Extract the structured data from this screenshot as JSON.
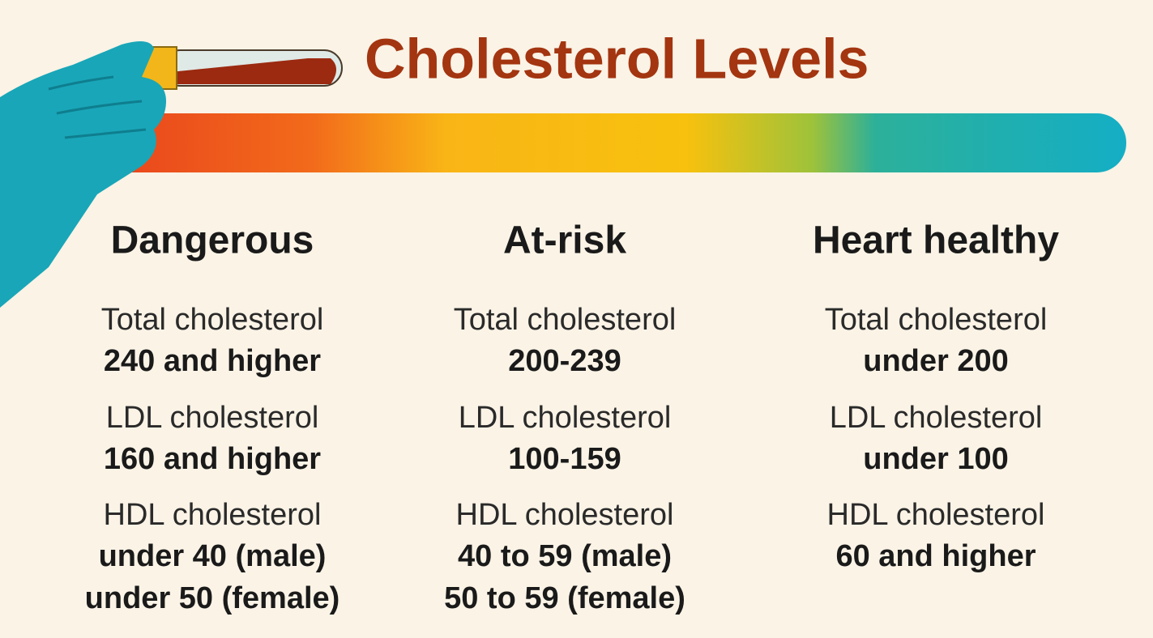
{
  "title": "Cholesterol Levels",
  "columns": [
    {
      "heading": "Dangerous",
      "items": [
        {
          "label": "Total cholesterol",
          "value": [
            "240 and higher"
          ]
        },
        {
          "label": "LDL cholesterol",
          "value": [
            "160 and higher"
          ]
        },
        {
          "label": "HDL cholesterol",
          "value": [
            "under 40 (male)",
            "under 50 (female)"
          ]
        }
      ]
    },
    {
      "heading": "At-risk",
      "items": [
        {
          "label": "Total cholesterol",
          "value": [
            "200-239"
          ]
        },
        {
          "label": "LDL cholesterol",
          "value": [
            "100-159"
          ]
        },
        {
          "label": "HDL cholesterol",
          "value": [
            "40 to 59 (male)",
            "50 to 59 (female)"
          ]
        }
      ]
    },
    {
      "heading": "Heart healthy",
      "items": [
        {
          "label": "Total cholesterol",
          "value": [
            "under 200"
          ]
        },
        {
          "label": "LDL cholesterol",
          "value": [
            "under 100"
          ]
        },
        {
          "label": "HDL cholesterol",
          "value": [
            "60 and higher"
          ]
        }
      ]
    }
  ]
}
